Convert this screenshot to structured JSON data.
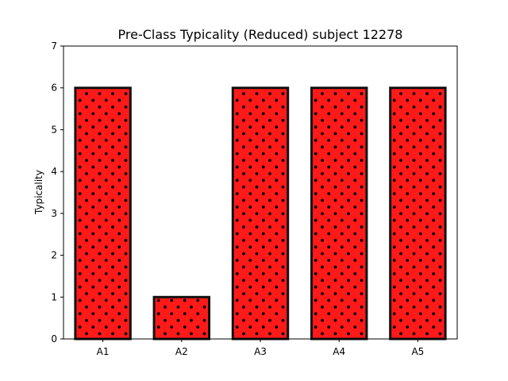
{
  "chart_data": {
    "type": "bar",
    "title": "Pre-Class Typicality (Reduced) subject 12278",
    "xlabel": "",
    "ylabel": "Typicality",
    "categories": [
      "A1",
      "A2",
      "A3",
      "A4",
      "A5"
    ],
    "values": [
      6,
      1,
      6,
      6,
      6
    ],
    "ylim": [
      0,
      7
    ],
    "yticks": [
      0,
      1,
      2,
      3,
      4,
      5,
      6,
      7
    ],
    "bar_color": "#ff1a1a",
    "bar_edge_color": "#111111",
    "hatch": "dots",
    "grid": false,
    "legend": "none"
  }
}
